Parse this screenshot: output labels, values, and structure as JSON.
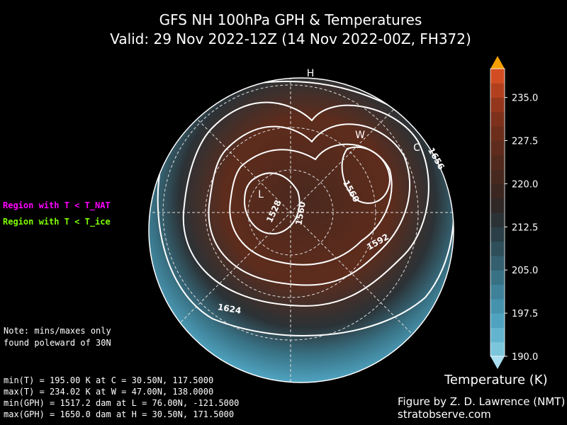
{
  "title": {
    "line1": "GFS NH 100hPa GPH & Temperatures",
    "line2": "Valid: 29 Nov 2022-12Z  (14 Nov 2022-00Z, FH372)"
  },
  "legend_labels": {
    "nat": "Region with T < T_NAT",
    "ice": "Region with T < T_ice"
  },
  "note": [
    "Note: mins/maxes only",
    "found poleward of 30N"
  ],
  "stats": [
    "min(T) = 195.00 K at C = 30.50N,  117.5000",
    "max(T) = 234.02 K at W = 47.00N,  138.0000",
    "min(GPH) = 1517.2 dam at L = 76.00N, -121.5000",
    "max(GPH) = 1650.0 dam at H = 30.50N,  171.5000"
  ],
  "credits": [
    "Figure by Z. D. Lawrence (NMT)",
    "stratobserve.com"
  ],
  "map": {
    "markers": [
      "H",
      "L",
      "W",
      "C"
    ],
    "contour_labels": [
      "1528",
      "1560",
      "1560",
      "1592",
      "1624",
      "1656"
    ]
  },
  "colorbar": {
    "label": "Temperature (K)",
    "lim": [
      190,
      240
    ],
    "ticks": [
      {
        "value": 190,
        "label": "190.0"
      },
      {
        "value": 197.5,
        "label": "197.5"
      },
      {
        "value": 205,
        "label": "205.0"
      },
      {
        "value": 212.5,
        "label": "212.5"
      },
      {
        "value": 220,
        "label": "220.0"
      },
      {
        "value": 227.5,
        "label": "227.5"
      },
      {
        "value": 235,
        "label": "235.0"
      }
    ],
    "colors": [
      "#7cc6dc",
      "#62b4cf",
      "#4fa3c0",
      "#4592ad",
      "#3e8198",
      "#387184",
      "#335f6e",
      "#2e4f5a",
      "#2a3f47",
      "#2b3236",
      "#302826",
      "#3b2620",
      "#47281f",
      "#52291d",
      "#5e2b1c",
      "#6c2d1b",
      "#7d301b",
      "#93361c",
      "#b2401e",
      "#d24e22"
    ],
    "over_color": "#f5a000",
    "under_color": "#a9dff0"
  }
}
